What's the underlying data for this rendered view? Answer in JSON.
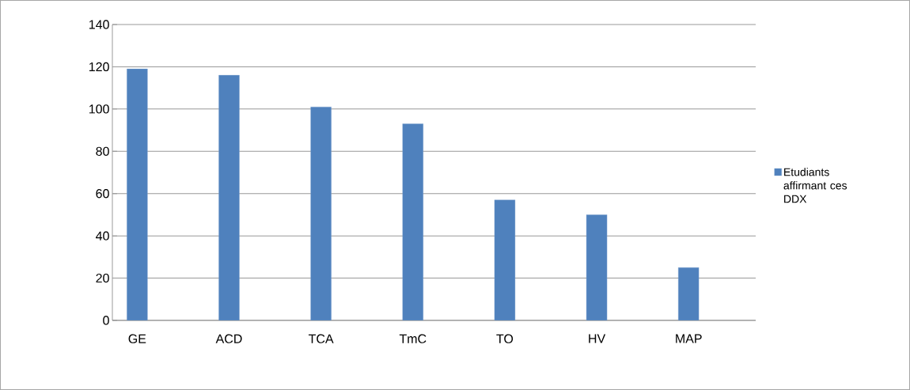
{
  "chart_data": {
    "type": "bar",
    "categories": [
      "GE",
      "ACD",
      "TCA",
      "TmC",
      "TO",
      "HV",
      "MAP"
    ],
    "series": [
      {
        "name": "Etudiants affirmant ces DDX",
        "color": "#4f81bd",
        "values": [
          119,
          116,
          101,
          93,
          57,
          50,
          25
        ]
      }
    ],
    "ylim": [
      0,
      140
    ],
    "yticks": [
      0,
      20,
      40,
      60,
      80,
      100,
      120,
      140
    ],
    "grid": "y",
    "legend": "right"
  }
}
